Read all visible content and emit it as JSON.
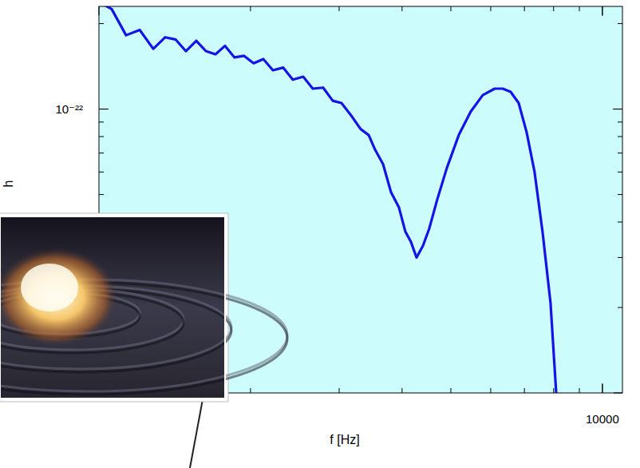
{
  "chart_data": {
    "type": "line",
    "x_label": "f [Hz]",
    "y_label": "h",
    "log": true,
    "color": "#1414e6",
    "xlim": [
      1000,
      10960
    ],
    "ylim": [
      1e-23,
      2.3e-22
    ],
    "xticks": [
      10000
    ],
    "yticks": [
      {
        "value": 1e-22,
        "label": "10⁻²²"
      }
    ],
    "x": [
      1015,
      1060,
      1132,
      1205,
      1282,
      1354,
      1419,
      1488,
      1561,
      1631,
      1704,
      1780,
      1859,
      1942,
      2029,
      2121,
      2216,
      2323,
      2427,
      2545,
      2659,
      2788,
      2913,
      3032,
      3168,
      3310,
      3434,
      3535,
      3667,
      3802,
      3944,
      4061,
      4167,
      4274,
      4401,
      4531,
      4698,
      4909,
      5185,
      5476,
      5785,
      6110,
      6338,
      6573,
      6818,
      7070,
      7333,
      7604,
      7889,
      8092,
      8150
    ],
    "values": [
      2.35e-22,
      2.25e-22,
      1.82e-22,
      1.9e-22,
      1.63e-22,
      1.79e-22,
      1.76e-22,
      1.6e-22,
      1.74e-22,
      1.6e-22,
      1.56e-22,
      1.67e-22,
      1.52e-22,
      1.54e-22,
      1.45e-22,
      1.5e-22,
      1.37e-22,
      1.4e-22,
      1.27e-22,
      1.3e-22,
      1.18e-22,
      1.19e-22,
      1.07e-22,
      1.05e-22,
      9.5e-23,
      8.5e-23,
      8.1e-23,
      7.2e-23,
      6.4e-23,
      5.1e-23,
      4.5e-23,
      3.7e-23,
      3.4e-23,
      3e-23,
      3.3e-23,
      3.8e-23,
      4.8e-23,
      6.2e-23,
      8.1e-23,
      9.8e-23,
      1.12e-22,
      1.18e-22,
      1.18e-22,
      1.15e-22,
      1.05e-22,
      8.3e-23,
      6e-23,
      3.7e-23,
      2.07e-23,
      1.01e-23,
      9e-24
    ]
  }
}
